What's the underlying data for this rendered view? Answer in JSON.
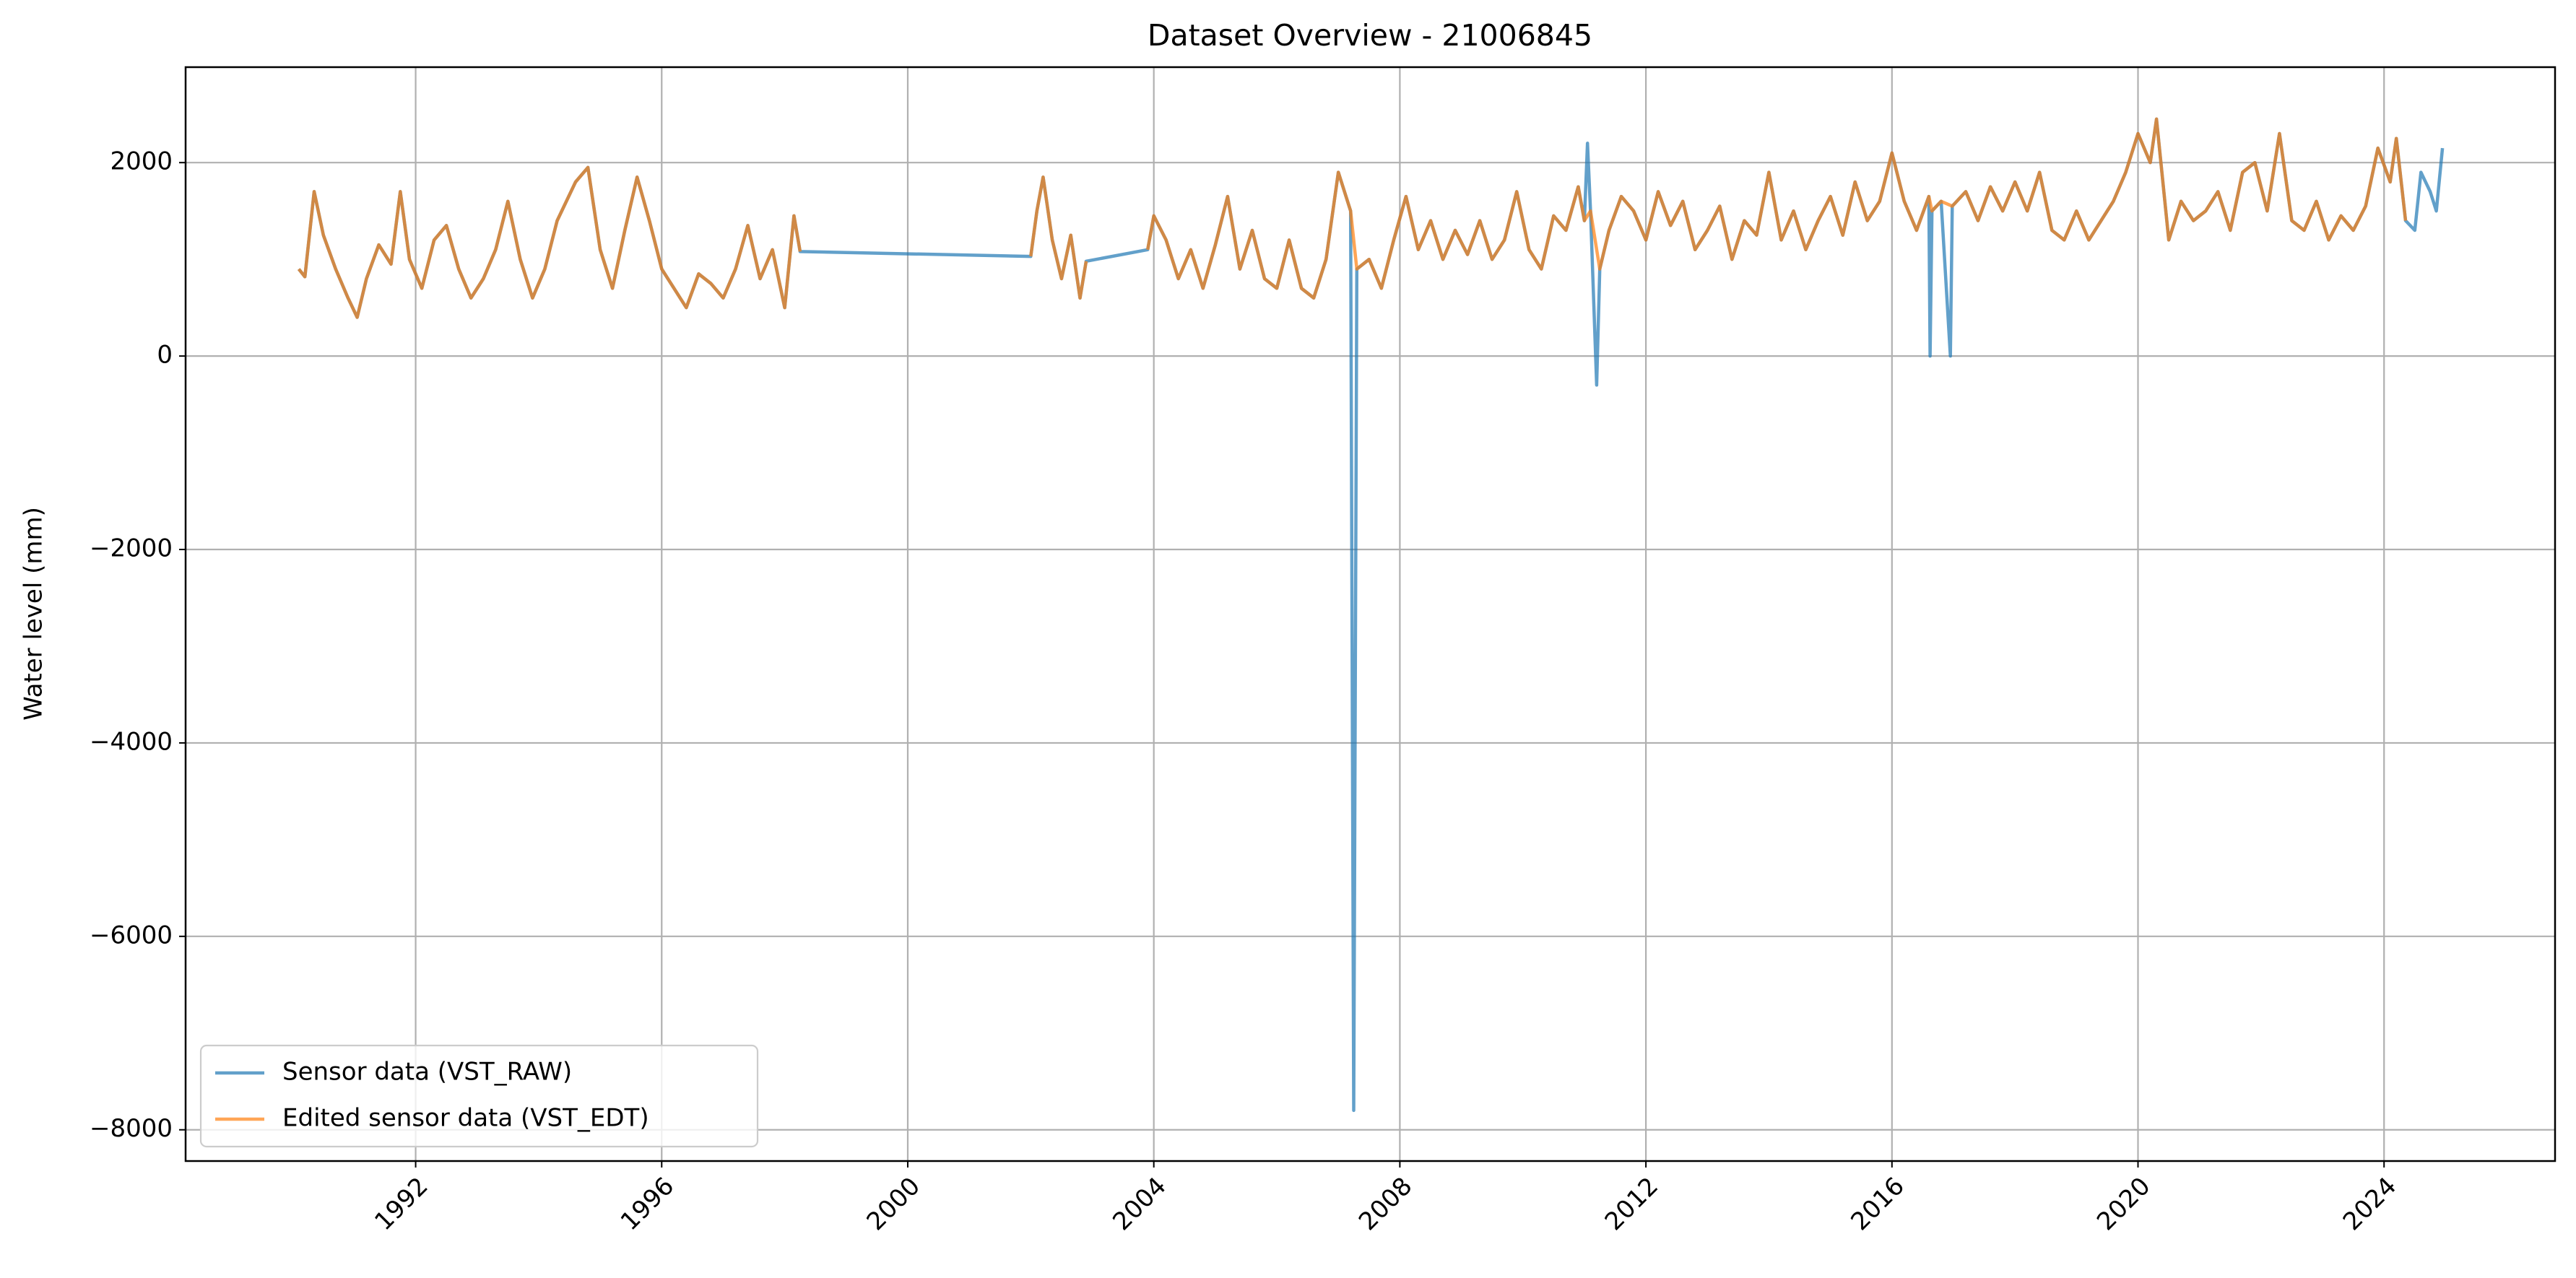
{
  "chart_data": {
    "type": "line",
    "title": "Dataset Overview - 21006845",
    "y_label": "Water level (mm)",
    "xlim": [
      1988.26,
      2026.78
    ],
    "ylim": [
      -8323,
      2987
    ],
    "xticks": [
      1992,
      1996,
      2000,
      2004,
      2008,
      2012,
      2016,
      2020,
      2024
    ],
    "yticks": [
      {
        "value": -8000,
        "label": "−8000"
      },
      {
        "value": -6000,
        "label": "−6000"
      },
      {
        "value": -4000,
        "label": "−4000"
      },
      {
        "value": -2000,
        "label": "−2000"
      },
      0,
      2000
    ],
    "grid": true,
    "legend": "lower left",
    "series": [
      {
        "name": "Sensor data (VST_RAW)",
        "color": "#1f77b4",
        "x": [
          1990.1,
          1990.2,
          1990.35,
          1990.5,
          1990.7,
          1990.9,
          1991.05,
          1991.2,
          1991.4,
          1991.6,
          1991.75,
          1991.9,
          1992.1,
          1992.3,
          1992.5,
          1992.7,
          1992.9,
          1993.1,
          1993.3,
          1993.5,
          1993.7,
          1993.9,
          1994.1,
          1994.3,
          1994.6,
          1994.8,
          1995.0,
          1995.2,
          1995.4,
          1995.6,
          1995.8,
          1996.0,
          1996.2,
          1996.4,
          1996.6,
          1996.8,
          1997.0,
          1997.2,
          1997.4,
          1997.6,
          1997.8,
          1998.0,
          1998.15,
          1998.25,
          2002.0,
          2002.1,
          2002.2,
          2002.35,
          2002.5,
          2002.65,
          2002.8,
          2002.9,
          2003.9,
          2004.0,
          2004.2,
          2004.4,
          2004.6,
          2004.8,
          2005.0,
          2005.2,
          2005.4,
          2005.6,
          2005.8,
          2006.0,
          2006.2,
          2006.4,
          2006.6,
          2006.8,
          2007.0,
          2007.2,
          2007.25,
          2007.3,
          2007.5,
          2007.7,
          2007.9,
          2008.1,
          2008.3,
          2008.5,
          2008.7,
          2008.9,
          2009.1,
          2009.3,
          2009.5,
          2009.7,
          2009.9,
          2010.1,
          2010.3,
          2010.5,
          2010.7,
          2010.9,
          2011.0,
          2011.05,
          2011.1,
          2011.2,
          2011.25,
          2011.4,
          2011.6,
          2011.8,
          2012.0,
          2012.2,
          2012.4,
          2012.6,
          2012.8,
          2013.0,
          2013.2,
          2013.4,
          2013.6,
          2013.8,
          2014.0,
          2014.2,
          2014.4,
          2014.6,
          2014.8,
          2015.0,
          2015.2,
          2015.4,
          2015.6,
          2015.8,
          2016.0,
          2016.2,
          2016.4,
          2016.6,
          2016.62,
          2016.65,
          2016.8,
          2016.95,
          2016.98,
          2017.2,
          2017.4,
          2017.6,
          2017.8,
          2018.0,
          2018.2,
          2018.4,
          2018.6,
          2018.8,
          2019.0,
          2019.2,
          2019.4,
          2019.6,
          2019.8,
          2020.0,
          2020.2,
          2020.3,
          2020.5,
          2020.7,
          2020.9,
          2021.1,
          2021.3,
          2021.5,
          2021.7,
          2021.9,
          2022.1,
          2022.3,
          2022.5,
          2022.7,
          2022.9,
          2023.1,
          2023.3,
          2023.5,
          2023.7,
          2023.9,
          2024.1,
          2024.2,
          2024.35,
          2024.5,
          2024.6,
          2024.75,
          2024.85,
          2024.95
        ],
        "values": [
          900,
          820,
          1700,
          1250,
          900,
          600,
          400,
          800,
          1150,
          950,
          1700,
          1000,
          700,
          1200,
          1350,
          900,
          600,
          800,
          1100,
          1600,
          1000,
          600,
          900,
          1400,
          1800,
          1950,
          1100,
          700,
          1300,
          1850,
          1400,
          900,
          700,
          500,
          850,
          750,
          600,
          900,
          1350,
          800,
          1100,
          500,
          1450,
          1080,
          1030,
          1500,
          1850,
          1200,
          800,
          1250,
          600,
          980,
          1100,
          1450,
          1200,
          800,
          1100,
          700,
          1150,
          1650,
          900,
          1300,
          800,
          700,
          1200,
          700,
          600,
          1000,
          1900,
          1500,
          -7800,
          900,
          1000,
          700,
          1200,
          1650,
          1100,
          1400,
          1000,
          1300,
          1050,
          1400,
          1000,
          1200,
          1700,
          1100,
          900,
          1450,
          1300,
          1750,
          1400,
          2200,
          1500,
          -300,
          900,
          1300,
          1650,
          1500,
          1200,
          1700,
          1350,
          1600,
          1100,
          1300,
          1550,
          1000,
          1400,
          1250,
          1900,
          1200,
          1500,
          1100,
          1400,
          1650,
          1250,
          1800,
          1400,
          1600,
          2100,
          1600,
          1300,
          1650,
          0,
          1500,
          1600,
          0,
          1550,
          1700,
          1400,
          1750,
          1500,
          1800,
          1500,
          1900,
          1300,
          1200,
          1500,
          1200,
          1400,
          1600,
          1900,
          2300,
          2000,
          2450,
          1200,
          1600,
          1400,
          1500,
          1700,
          1300,
          1900,
          2000,
          1500,
          2300,
          1400,
          1300,
          1600,
          1200,
          1450,
          1300,
          1550,
          2150,
          1800,
          2250,
          1400,
          1300,
          1900,
          1700,
          1500,
          2150
        ]
      },
      {
        "name": "Edited sensor data (VST_EDT)",
        "color": "#ff7f0e",
        "x": [
          1990.1,
          1990.2,
          1990.35,
          1990.5,
          1990.7,
          1990.9,
          1991.05,
          1991.2,
          1991.4,
          1991.6,
          1991.75,
          1991.9,
          1992.1,
          1992.3,
          1992.5,
          1992.7,
          1992.9,
          1993.1,
          1993.3,
          1993.5,
          1993.7,
          1993.9,
          1994.1,
          1994.3,
          1994.6,
          1994.8,
          1995.0,
          1995.2,
          1995.4,
          1995.6,
          1995.8,
          1996.0,
          1996.2,
          1996.4,
          1996.6,
          1996.8,
          1997.0,
          1997.2,
          1997.4,
          1997.6,
          1997.8,
          1998.0,
          1998.15,
          1998.25,
          2000,
          2002.0,
          2002.1,
          2002.2,
          2002.35,
          2002.5,
          2002.65,
          2002.8,
          2002.9,
          2003.4,
          2003.9,
          2004.0,
          2004.2,
          2004.4,
          2004.6,
          2004.8,
          2005.0,
          2005.2,
          2005.4,
          2005.6,
          2005.8,
          2006.0,
          2006.2,
          2006.4,
          2006.6,
          2006.8,
          2007.0,
          2007.2,
          2007.3,
          2007.5,
          2007.7,
          2007.9,
          2008.1,
          2008.3,
          2008.5,
          2008.7,
          2008.9,
          2009.1,
          2009.3,
          2009.5,
          2009.7,
          2009.9,
          2010.1,
          2010.3,
          2010.5,
          2010.7,
          2010.9,
          2011.0,
          2011.1,
          2011.25,
          2011.4,
          2011.6,
          2011.8,
          2012.0,
          2012.2,
          2012.4,
          2012.6,
          2012.8,
          2013.0,
          2013.2,
          2013.4,
          2013.6,
          2013.8,
          2014.0,
          2014.2,
          2014.4,
          2014.6,
          2014.8,
          2015.0,
          2015.2,
          2015.4,
          2015.6,
          2015.8,
          2016.0,
          2016.2,
          2016.4,
          2016.6,
          2016.65,
          2016.8,
          2016.98,
          2017.2,
          2017.4,
          2017.6,
          2017.8,
          2018.0,
          2018.2,
          2018.4,
          2018.6,
          2018.8,
          2019.0,
          2019.2,
          2019.4,
          2019.6,
          2019.8,
          2020.0,
          2020.2,
          2020.3,
          2020.5,
          2020.7,
          2020.9,
          2021.1,
          2021.3,
          2021.5,
          2021.7,
          2021.9,
          2022.1,
          2022.3,
          2022.5,
          2022.7,
          2022.9,
          2023.1,
          2023.3,
          2023.5,
          2023.7,
          2023.9,
          2024.1,
          2024.2,
          2024.35
        ],
        "values": [
          900,
          820,
          1700,
          1250,
          900,
          600,
          400,
          800,
          1150,
          950,
          1700,
          1000,
          700,
          1200,
          1350,
          900,
          600,
          800,
          1100,
          1600,
          1000,
          600,
          900,
          1400,
          1800,
          1950,
          1100,
          700,
          1300,
          1850,
          1400,
          900,
          700,
          500,
          850,
          750,
          600,
          900,
          1350,
          800,
          1100,
          500,
          1450,
          1080,
          null,
          1030,
          1500,
          1850,
          1200,
          800,
          1250,
          600,
          980,
          null,
          1100,
          1450,
          1200,
          800,
          1100,
          700,
          1150,
          1650,
          900,
          1300,
          800,
          700,
          1200,
          700,
          600,
          1000,
          1900,
          1500,
          900,
          1000,
          700,
          1200,
          1650,
          1100,
          1400,
          1000,
          1300,
          1050,
          1400,
          1000,
          1200,
          1700,
          1100,
          900,
          1450,
          1300,
          1750,
          1400,
          1500,
          900,
          1300,
          1650,
          1500,
          1200,
          1700,
          1350,
          1600,
          1100,
          1300,
          1550,
          1000,
          1400,
          1250,
          1900,
          1200,
          1500,
          1100,
          1400,
          1650,
          1250,
          1800,
          1400,
          1600,
          2100,
          1600,
          1300,
          1650,
          1500,
          1600,
          1550,
          1700,
          1400,
          1750,
          1500,
          1800,
          1500,
          1900,
          1300,
          1200,
          1500,
          1200,
          1400,
          1600,
          1900,
          2300,
          2000,
          2450,
          1200,
          1600,
          1400,
          1500,
          1700,
          1300,
          1900,
          2000,
          1500,
          2300,
          1400,
          1300,
          1600,
          1200,
          1450,
          1300,
          1550,
          2150,
          1800,
          2250,
          1400
        ]
      }
    ]
  }
}
